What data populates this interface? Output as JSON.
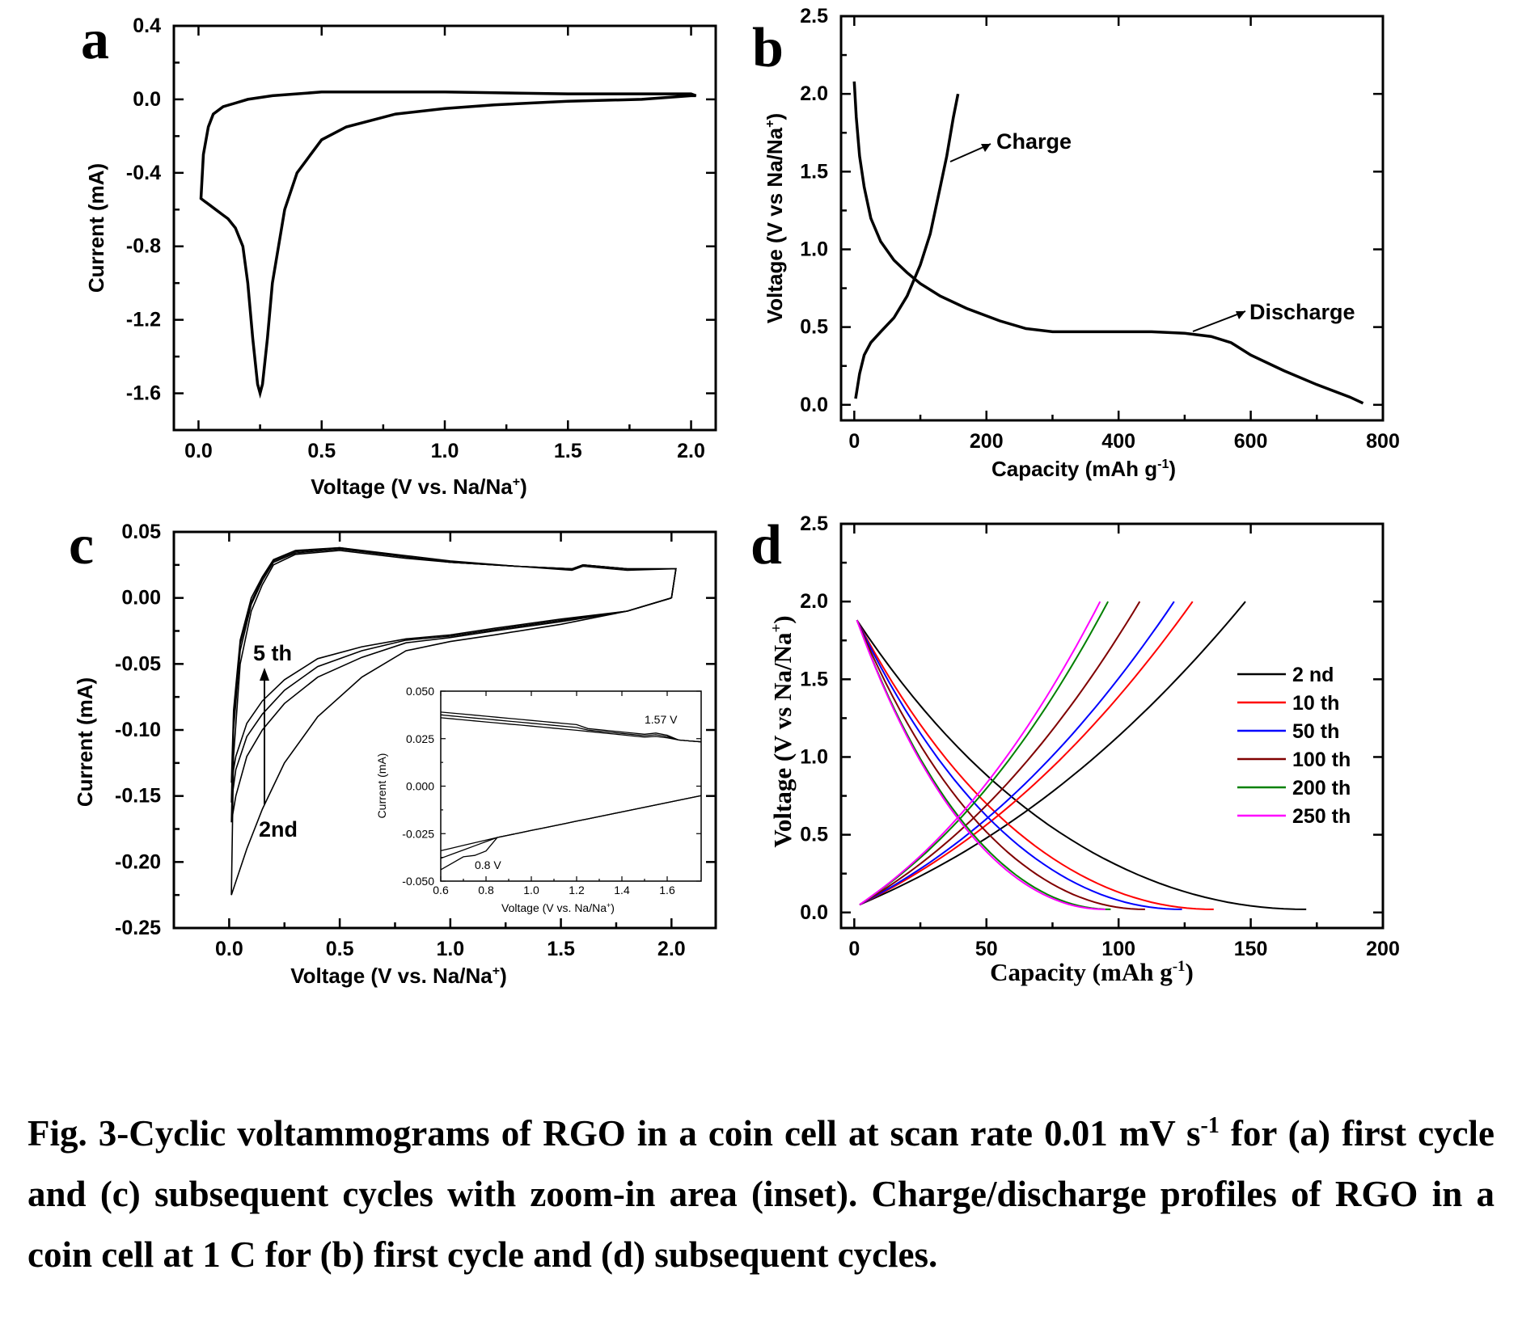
{
  "caption": {
    "part1": "Fig. 3-Cyclic voltammograms of RGO in a coin cell at scan rate 0.01 mV s",
    "sup": "-1",
    "part2": " for (a) first cycle and (c) subsequent cycles with zoom-in area (inset). Charge/discharge profiles of RGO in a coin cell at 1 C for (b) first cycle and (d) subsequent cycles."
  },
  "chart_data": [
    {
      "panel": "a",
      "type": "line",
      "xlabel": "Voltage (V vs. Na/Na",
      "xlabel_sup": "+",
      "xlabel_end": ")",
      "ylabel": "Current (mA)",
      "xlim": [
        -0.1,
        2.1
      ],
      "ylim": [
        -1.8,
        0.4
      ],
      "xticks": [
        "0.0",
        "0.5",
        "1.0",
        "1.5",
        "2.0"
      ],
      "yticks": [
        "0.4",
        "0.0",
        "-0.4",
        "-0.8",
        "-1.2",
        "-1.6"
      ],
      "series": [
        {
          "x": [
            2.0,
            1.8,
            1.5,
            1.2,
            1.0,
            0.8,
            0.6,
            0.5,
            0.4,
            0.35,
            0.3,
            0.28,
            0.26,
            0.25,
            0.24,
            0.22,
            0.2,
            0.18,
            0.15,
            0.12,
            0.1,
            0.07,
            0.05,
            0.03,
            0.02,
            0.01,
            0.02,
            0.04,
            0.06,
            0.1,
            0.15,
            0.2,
            0.3,
            0.5,
            0.8,
            1.0,
            1.5,
            2.0,
            2.02,
            2.0
          ],
          "y": [
            0.02,
            0.0,
            -0.01,
            -0.03,
            -0.05,
            -0.08,
            -0.15,
            -0.22,
            -0.4,
            -0.6,
            -1.0,
            -1.3,
            -1.55,
            -1.6,
            -1.55,
            -1.3,
            -1.0,
            -0.8,
            -0.7,
            -0.65,
            -0.63,
            -0.6,
            -0.58,
            -0.56,
            -0.55,
            -0.54,
            -0.3,
            -0.15,
            -0.08,
            -0.04,
            -0.02,
            0.0,
            0.02,
            0.04,
            0.04,
            0.04,
            0.03,
            0.03,
            0.02,
            0.02
          ]
        }
      ]
    },
    {
      "panel": "b",
      "type": "line",
      "xlabel": "Capacity (mAh g",
      "xlabel_sup": "-1",
      "xlabel_end": ")",
      "ylabel": "Voltage (V vs Na/Na",
      "ylabel_sup": "+",
      "ylabel_end": ")",
      "xlim": [
        -20,
        800
      ],
      "ylim": [
        -0.1,
        2.5
      ],
      "xticks": [
        "0",
        "200",
        "400",
        "600",
        "800"
      ],
      "yticks": [
        "0.0",
        "0.5",
        "1.0",
        "1.5",
        "2.0",
        "2.5"
      ],
      "annotations": [
        "Charge",
        "Discharge"
      ],
      "series": [
        {
          "name": "Discharge",
          "x": [
            0,
            3,
            8,
            15,
            25,
            40,
            60,
            80,
            100,
            130,
            170,
            220,
            260,
            300,
            350,
            400,
            450,
            500,
            540,
            570,
            600,
            650,
            700,
            750,
            770
          ],
          "y": [
            2.08,
            1.85,
            1.6,
            1.4,
            1.2,
            1.05,
            0.93,
            0.85,
            0.78,
            0.7,
            0.62,
            0.54,
            0.49,
            0.47,
            0.47,
            0.47,
            0.47,
            0.46,
            0.44,
            0.4,
            0.32,
            0.22,
            0.13,
            0.05,
            0.01
          ]
        },
        {
          "name": "Charge",
          "x": [
            2,
            8,
            15,
            25,
            40,
            60,
            80,
            100,
            115,
            130,
            140,
            150,
            157
          ],
          "y": [
            0.04,
            0.2,
            0.32,
            0.4,
            0.47,
            0.56,
            0.7,
            0.9,
            1.1,
            1.4,
            1.6,
            1.85,
            2.0
          ]
        }
      ]
    },
    {
      "panel": "c",
      "type": "line",
      "xlabel": "Voltage (V vs. Na/Na",
      "xlabel_sup": "+",
      "xlabel_end": ")",
      "ylabel": "Current (mA)",
      "xlim": [
        -0.25,
        2.2
      ],
      "ylim": [
        -0.25,
        0.05
      ],
      "xticks": [
        "0.0",
        "0.5",
        "1.0",
        "1.5",
        "2.0"
      ],
      "yticks": [
        "0.05",
        "0.00",
        "-0.05",
        "-0.10",
        "-0.15",
        "-0.20",
        "-0.25"
      ],
      "annotations": [
        "5 th",
        "2nd"
      ],
      "series": [
        {
          "x": [
            2.0,
            1.8,
            1.5,
            1.2,
            1.0,
            0.8,
            0.6,
            0.4,
            0.25,
            0.15,
            0.08,
            0.03,
            0.01,
            0.02,
            0.05,
            0.1,
            0.15,
            0.2,
            0.3,
            0.5,
            0.8,
            1.0,
            1.3,
            1.55,
            1.6,
            1.8,
            2.0,
            2.02,
            2.0
          ],
          "y": [
            0.0,
            -0.01,
            -0.02,
            -0.028,
            -0.033,
            -0.04,
            -0.06,
            -0.09,
            -0.125,
            -0.16,
            -0.19,
            -0.215,
            -0.225,
            -0.12,
            -0.05,
            -0.01,
            0.01,
            0.025,
            0.033,
            0.036,
            0.03,
            0.027,
            0.024,
            0.021,
            0.024,
            0.021,
            0.022,
            0.022,
            0.0
          ]
        },
        {
          "x": [
            2.0,
            1.8,
            1.5,
            1.2,
            1.0,
            0.8,
            0.6,
            0.4,
            0.25,
            0.15,
            0.08,
            0.03,
            0.01,
            0.02,
            0.05,
            0.1,
            0.15,
            0.2,
            0.3,
            0.5,
            0.8,
            1.0,
            1.3,
            1.55,
            1.6,
            1.8,
            2.0,
            2.02,
            2.0
          ],
          "y": [
            0.0,
            -0.01,
            -0.018,
            -0.025,
            -0.03,
            -0.034,
            -0.045,
            -0.06,
            -0.08,
            -0.1,
            -0.12,
            -0.15,
            -0.17,
            -0.1,
            -0.04,
            -0.005,
            0.013,
            0.027,
            0.034,
            0.037,
            0.031,
            0.027,
            0.024,
            0.022,
            0.025,
            0.022,
            0.022,
            0.022,
            0.0
          ]
        },
        {
          "x": [
            2.0,
            1.8,
            1.5,
            1.2,
            1.0,
            0.8,
            0.6,
            0.4,
            0.25,
            0.15,
            0.08,
            0.03,
            0.01,
            0.02,
            0.05,
            0.1,
            0.15,
            0.2,
            0.3,
            0.5,
            0.8,
            1.0,
            1.3,
            1.55,
            1.6,
            1.8,
            2.0,
            2.02,
            2.0
          ],
          "y": [
            0.0,
            -0.01,
            -0.017,
            -0.024,
            -0.029,
            -0.032,
            -0.04,
            -0.052,
            -0.07,
            -0.088,
            -0.105,
            -0.13,
            -0.155,
            -0.09,
            -0.035,
            -0.003,
            0.015,
            0.028,
            0.035,
            0.038,
            0.031,
            0.027,
            0.024,
            0.022,
            0.025,
            0.022,
            0.022,
            0.022,
            0.0
          ]
        },
        {
          "x": [
            2.0,
            1.8,
            1.5,
            1.2,
            1.0,
            0.8,
            0.6,
            0.4,
            0.25,
            0.15,
            0.08,
            0.03,
            0.01,
            0.02,
            0.05,
            0.1,
            0.15,
            0.2,
            0.3,
            0.5,
            0.8,
            1.0,
            1.3,
            1.55,
            1.6,
            1.8,
            2.0,
            2.02,
            2.0
          ],
          "y": [
            0.0,
            -0.01,
            -0.016,
            -0.023,
            -0.028,
            -0.031,
            -0.037,
            -0.046,
            -0.062,
            -0.078,
            -0.095,
            -0.12,
            -0.14,
            -0.085,
            -0.032,
            0.0,
            0.016,
            0.029,
            0.036,
            0.038,
            0.032,
            0.028,
            0.024,
            0.022,
            0.025,
            0.022,
            0.022,
            0.022,
            0.0
          ]
        }
      ],
      "inset": {
        "xlabel": "Voltage (V vs. Na/Na",
        "xlabel_sup": "+",
        "xlabel_end": ")",
        "ylabel": "Current (mA)",
        "xlim": [
          0.6,
          1.75
        ],
        "ylim": [
          -0.05,
          0.05
        ],
        "xticks": [
          "0.6",
          "0.8",
          "1.0",
          "1.2",
          "1.4",
          "1.6"
        ],
        "yticks": [
          "0.050",
          "0.025",
          "0.000",
          "-0.025",
          "-0.050"
        ],
        "annotations": [
          "1.57 V",
          "0.8 V"
        ]
      }
    },
    {
      "panel": "d",
      "type": "line",
      "xlabel": "Capacity (mAh g",
      "xlabel_sup": "-1",
      "xlabel_end": ")",
      "ylabel": "Voltage (V vs Na/Na",
      "ylabel_sup": "+",
      "ylabel_end": ")",
      "xlim": [
        -5,
        200
      ],
      "ylim": [
        -0.1,
        2.5
      ],
      "xticks": [
        "0",
        "50",
        "100",
        "150",
        "200"
      ],
      "yticks": [
        "0.0",
        "0.5",
        "1.0",
        "1.5",
        "2.0",
        "2.5"
      ],
      "legend_position": "right",
      "series": [
        {
          "name": "2 nd",
          "color": "#000000",
          "discharge_cap": 171,
          "charge_cap": 148
        },
        {
          "name": "10 th",
          "color": "#ff0000",
          "discharge_cap": 136,
          "charge_cap": 128
        },
        {
          "name": "50 th",
          "color": "#0000ff",
          "discharge_cap": 124,
          "charge_cap": 121
        },
        {
          "name": "100 th",
          "color": "#800000",
          "discharge_cap": 110,
          "charge_cap": 108
        },
        {
          "name": "200 th",
          "color": "#008000",
          "discharge_cap": 97,
          "charge_cap": 96
        },
        {
          "name": "250 th",
          "color": "#ff00ff",
          "discharge_cap": 95,
          "charge_cap": 93
        }
      ]
    }
  ]
}
